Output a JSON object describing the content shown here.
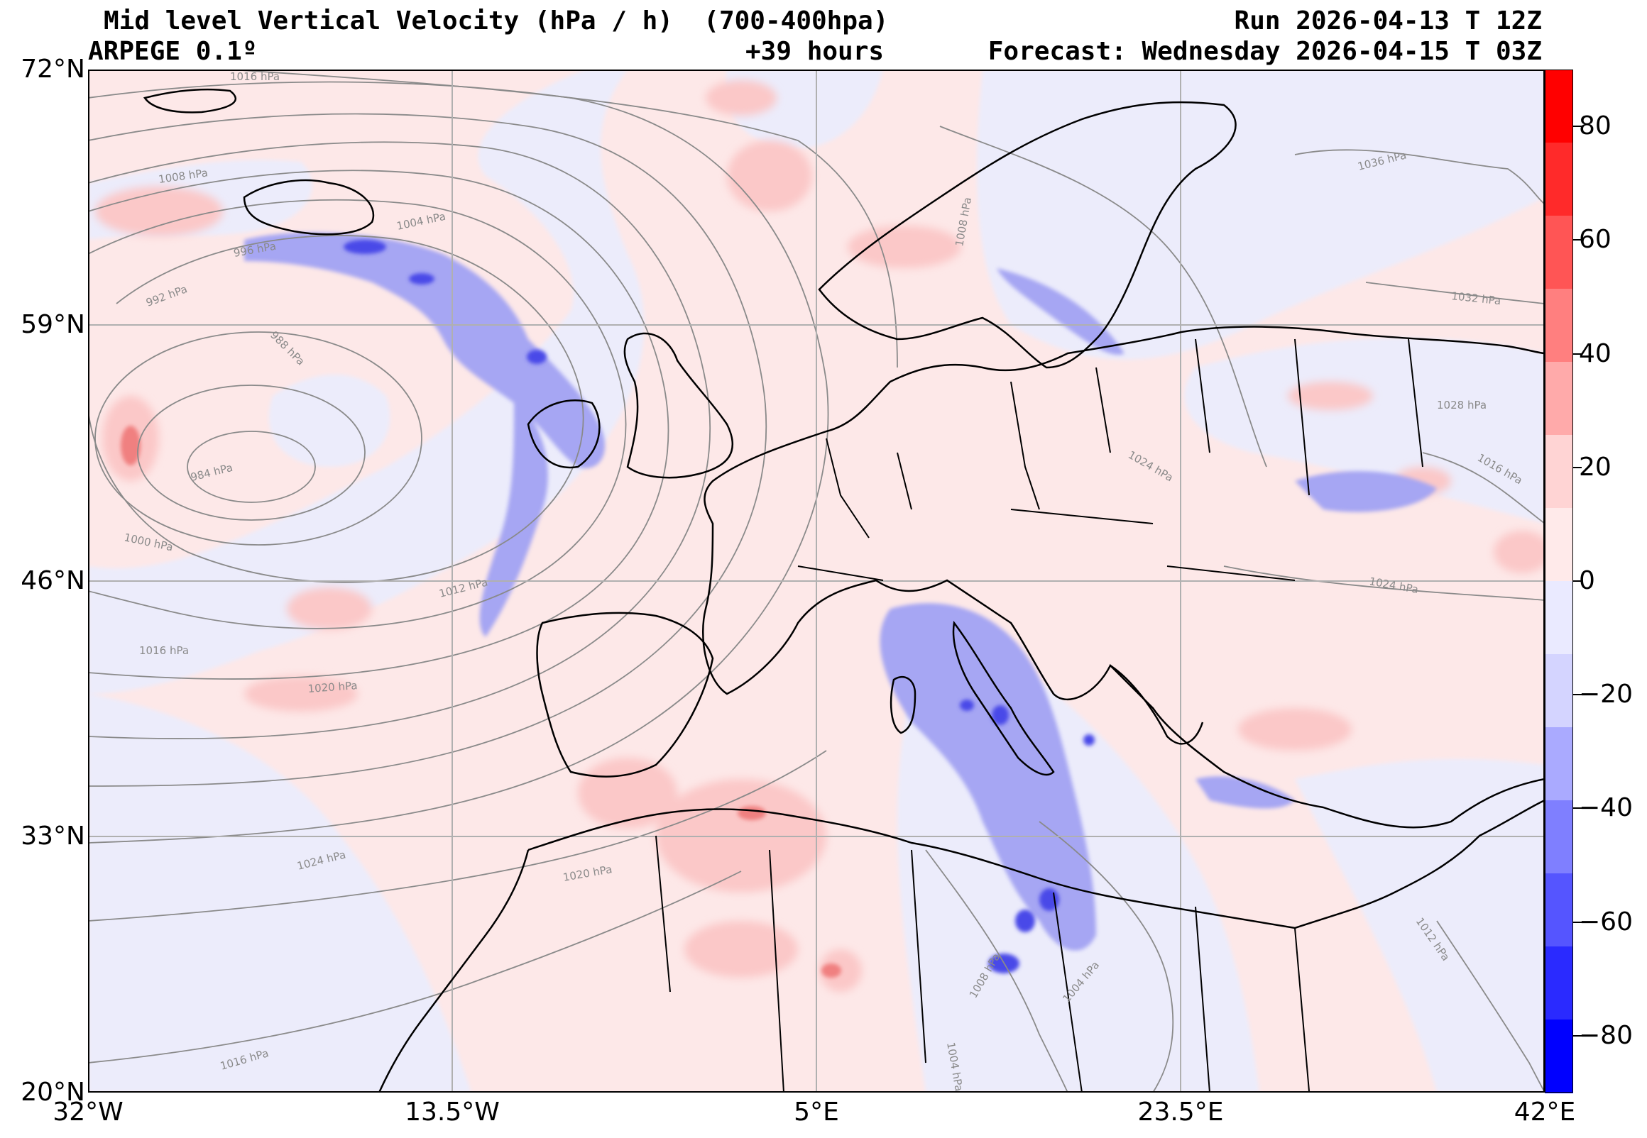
{
  "header": {
    "title": "Mid level Vertical Velocity (hPa / h)  (700-400hpa)",
    "model": "ARPEGE 0.1º",
    "lead": "+39 hours",
    "run": "Run 2026-04-13 T 12Z",
    "forecast": "Forecast: Wednesday 2026-04-15 T 03Z"
  },
  "map": {
    "lat_labels": [
      "72°N",
      "59°N",
      "46°N",
      "33°N",
      "20°N"
    ],
    "lon_labels": [
      "32°W",
      "13.5°W",
      "5°E",
      "23.5°E",
      "42°E"
    ],
    "extent": {
      "lon_min": -32,
      "lon_max": 42,
      "lat_min": 20,
      "lat_max": 72
    },
    "grid_lines": true,
    "isobar_labels": [
      "1016 hPa",
      "1008 hPa",
      "1004 hPa",
      "996 hPa",
      "992 hPa",
      "988 hPa",
      "984 hPa",
      "1000 hPa",
      "1012 hPa",
      "1016 hPa",
      "1020 hPa",
      "1024 hPa",
      "1020 hPa",
      "1016 hPa",
      "1008 hPa",
      "1004 hPa",
      "1004 hPa",
      "1008 hPa",
      "1036 hPa",
      "1032 hPa",
      "1028 hPa",
      "1024 hPa",
      "1024 hPa",
      "1016 hPa",
      "1012 hPa"
    ],
    "colors": {
      "light_pink": "#fde8e8",
      "light_blue": "#ececfb",
      "pink": "#fbc8c8",
      "blue": "#a6a6f3",
      "deep_blue": "#4a4ae8",
      "red": "#f08080",
      "isobar": "#8a8a8a",
      "coast": "#000000",
      "grid": "#b0b0b0"
    }
  },
  "colorbar": {
    "labels": [
      "80",
      "60",
      "40",
      "20",
      "0",
      "−20",
      "−40",
      "−60",
      "−80"
    ],
    "range": [
      -90,
      90
    ],
    "colors_top_to_bottom": [
      "#ff0000",
      "#ff2a2a",
      "#ff5555",
      "#ff7f7f",
      "#ffaaaa",
      "#ffd4d4",
      "#ffeaea",
      "#eaeaff",
      "#d4d4ff",
      "#aaaaff",
      "#7f7fff",
      "#5555ff",
      "#2a2aff",
      "#0000ff"
    ]
  }
}
